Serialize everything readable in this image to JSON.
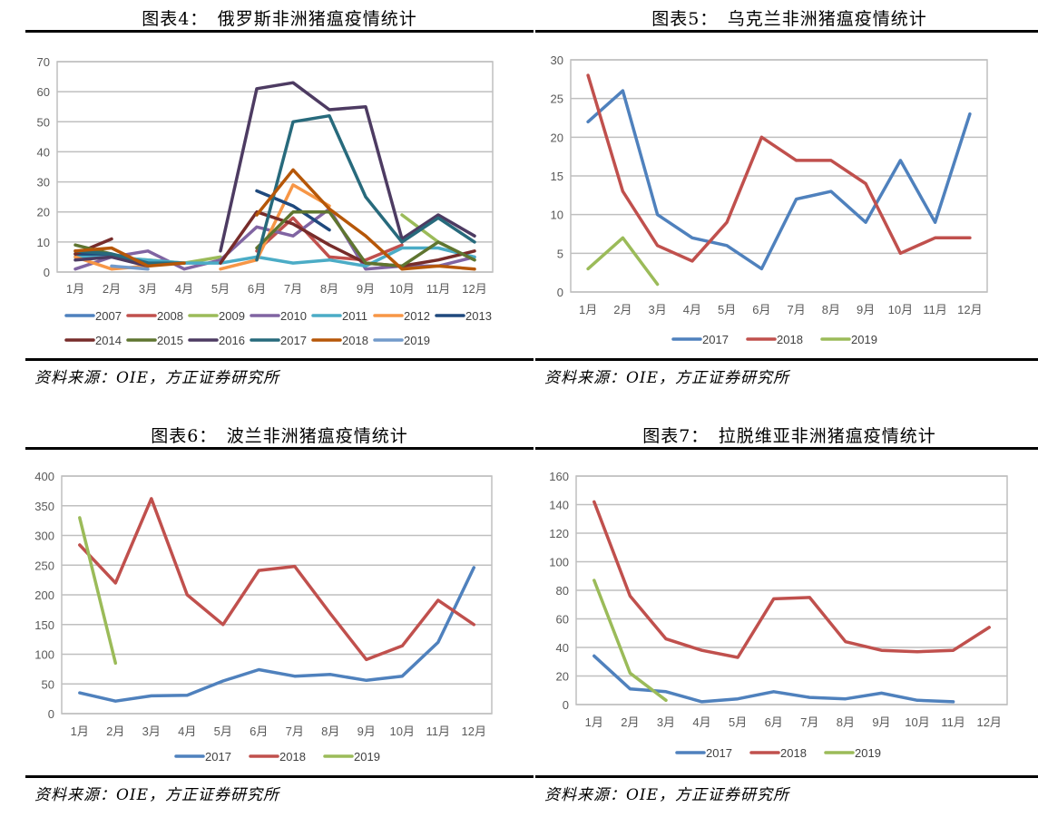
{
  "source_text": "资料来源：OIE，方正证券研究所",
  "chart_data": [
    {
      "id": "fig4",
      "type": "line",
      "title": "图表4：　俄罗斯非洲猪瘟疫情统计",
      "xlabel": "",
      "ylabel": "",
      "ylim": [
        0,
        70
      ],
      "yticks": [
        0,
        10,
        20,
        30,
        40,
        50,
        60,
        70
      ],
      "categories": [
        "1月",
        "2月",
        "3月",
        "4月",
        "5月",
        "6月",
        "7月",
        "8月",
        "9月",
        "10月",
        "11月",
        "12月"
      ],
      "grid": true,
      "legend": "bottom",
      "series": [
        {
          "name": "2007",
          "color": "#4F81BD",
          "values": [
            null,
            null,
            null,
            null,
            null,
            null,
            null,
            null,
            null,
            null,
            null,
            null
          ]
        },
        {
          "name": "2008",
          "color": "#C0504D",
          "values": [
            null,
            null,
            null,
            null,
            null,
            7,
            18,
            5,
            4,
            9,
            null,
            null
          ]
        },
        {
          "name": "2009",
          "color": "#9BBB59",
          "values": [
            6,
            5,
            4,
            3,
            5,
            null,
            null,
            null,
            null,
            19,
            10,
            4
          ]
        },
        {
          "name": "2010",
          "color": "#8064A2",
          "values": [
            1,
            5,
            7,
            1,
            4,
            15,
            12,
            21,
            1,
            2,
            2,
            5
          ]
        },
        {
          "name": "2011",
          "color": "#4BACC6",
          "values": [
            5,
            5,
            4,
            3,
            3,
            5,
            3,
            4,
            2,
            8,
            8,
            5
          ]
        },
        {
          "name": "2012",
          "color": "#F79646",
          "values": [
            5,
            1,
            2,
            null,
            1,
            4,
            29,
            22,
            null,
            null,
            null,
            null
          ]
        },
        {
          "name": "2013",
          "color": "#1F497D",
          "values": [
            6,
            6,
            3,
            null,
            null,
            27,
            22,
            14,
            null,
            null,
            null,
            null
          ]
        },
        {
          "name": "2014",
          "color": "#772C2A",
          "values": [
            6,
            11,
            null,
            null,
            3,
            20,
            16,
            9,
            3,
            2,
            4,
            7
          ]
        },
        {
          "name": "2015",
          "color": "#5F7530",
          "values": [
            9,
            6,
            2,
            null,
            null,
            8,
            20,
            20,
            3,
            2,
            10,
            4
          ]
        },
        {
          "name": "2016",
          "color": "#4D3B62",
          "values": [
            4,
            5,
            2,
            null,
            7,
            61,
            63,
            54,
            55,
            11,
            19,
            12
          ]
        },
        {
          "name": "2017",
          "color": "#276A7C",
          "values": [
            7,
            6,
            3,
            3,
            null,
            4,
            50,
            52,
            25,
            10,
            18,
            10
          ]
        },
        {
          "name": "2018",
          "color": "#B65708",
          "values": [
            7,
            8,
            2,
            3,
            null,
            19,
            34,
            21,
            12,
            1,
            2,
            1
          ]
        },
        {
          "name": "2019",
          "color": "#729ACA",
          "values": [
            null,
            2,
            1,
            null,
            null,
            null,
            null,
            null,
            null,
            null,
            null,
            null
          ]
        }
      ]
    },
    {
      "id": "fig5",
      "type": "line",
      "title": "图表5：　乌克兰非洲猪瘟疫情统计",
      "xlabel": "",
      "ylabel": "",
      "ylim": [
        0,
        30
      ],
      "yticks": [
        0,
        5,
        10,
        15,
        20,
        25,
        30
      ],
      "categories": [
        "1月",
        "2月",
        "3月",
        "4月",
        "5月",
        "6月",
        "7月",
        "8月",
        "9月",
        "10月",
        "11月",
        "12月"
      ],
      "grid": true,
      "legend": "bottom",
      "series": [
        {
          "name": "2017",
          "color": "#4F81BD",
          "values": [
            22,
            26,
            10,
            7,
            6,
            3,
            12,
            13,
            9,
            17,
            9,
            23
          ]
        },
        {
          "name": "2018",
          "color": "#C0504D",
          "values": [
            28,
            13,
            6,
            4,
            9,
            20,
            17,
            17,
            14,
            5,
            7,
            7
          ]
        },
        {
          "name": "2019",
          "color": "#9BBB59",
          "values": [
            3,
            7,
            1,
            null,
            null,
            null,
            null,
            null,
            null,
            null,
            null,
            null
          ]
        }
      ]
    },
    {
      "id": "fig6",
      "type": "line",
      "title": "图表6：　波兰非洲猪瘟疫情统计",
      "xlabel": "",
      "ylabel": "",
      "ylim": [
        0,
        400
      ],
      "yticks": [
        0,
        50,
        100,
        150,
        200,
        250,
        300,
        350,
        400
      ],
      "categories": [
        "1月",
        "2月",
        "3月",
        "4月",
        "5月",
        "6月",
        "7月",
        "8月",
        "9月",
        "10月",
        "11月",
        "12月"
      ],
      "grid": true,
      "legend": "bottom",
      "series": [
        {
          "name": "2017",
          "color": "#4F81BD",
          "values": [
            35,
            21,
            30,
            31,
            55,
            74,
            63,
            66,
            56,
            63,
            120,
            246
          ]
        },
        {
          "name": "2018",
          "color": "#C0504D",
          "values": [
            284,
            220,
            362,
            200,
            150,
            241,
            248,
            168,
            91,
            114,
            191,
            150
          ]
        },
        {
          "name": "2019",
          "color": "#9BBB59",
          "values": [
            330,
            85,
            null,
            null,
            null,
            null,
            null,
            null,
            null,
            null,
            null,
            null
          ]
        }
      ]
    },
    {
      "id": "fig7",
      "type": "line",
      "title": "图表7：　拉脱维亚非洲猪瘟疫情统计",
      "xlabel": "",
      "ylabel": "",
      "ylim": [
        0,
        160
      ],
      "yticks": [
        0,
        20,
        40,
        60,
        80,
        100,
        120,
        140,
        160
      ],
      "categories": [
        "1月",
        "2月",
        "3月",
        "4月",
        "5月",
        "6月",
        "7月",
        "8月",
        "9月",
        "10月",
        "11月",
        "12月"
      ],
      "grid": true,
      "legend": "bottom",
      "series": [
        {
          "name": "2017",
          "color": "#4F81BD",
          "values": [
            34,
            11,
            9,
            2,
            4,
            9,
            5,
            4,
            8,
            3,
            2,
            null
          ]
        },
        {
          "name": "2018",
          "color": "#C0504D",
          "values": [
            142,
            76,
            46,
            38,
            33,
            74,
            75,
            44,
            38,
            37,
            38,
            54
          ]
        },
        {
          "name": "2019",
          "color": "#9BBB59",
          "values": [
            87,
            22,
            3,
            null,
            null,
            null,
            null,
            null,
            null,
            null,
            null,
            null
          ]
        }
      ]
    }
  ]
}
